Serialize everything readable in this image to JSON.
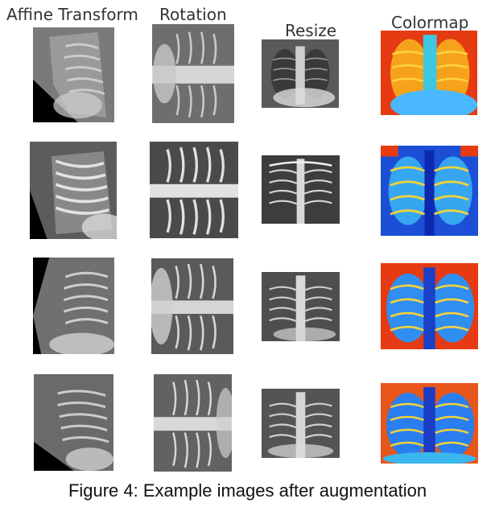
{
  "columns": {
    "affine": "Affine Transform",
    "rotation": "Rotation",
    "resize": "Resize",
    "colormap": "Colormap"
  },
  "caption": "Figure 4: Example images after augmentation"
}
